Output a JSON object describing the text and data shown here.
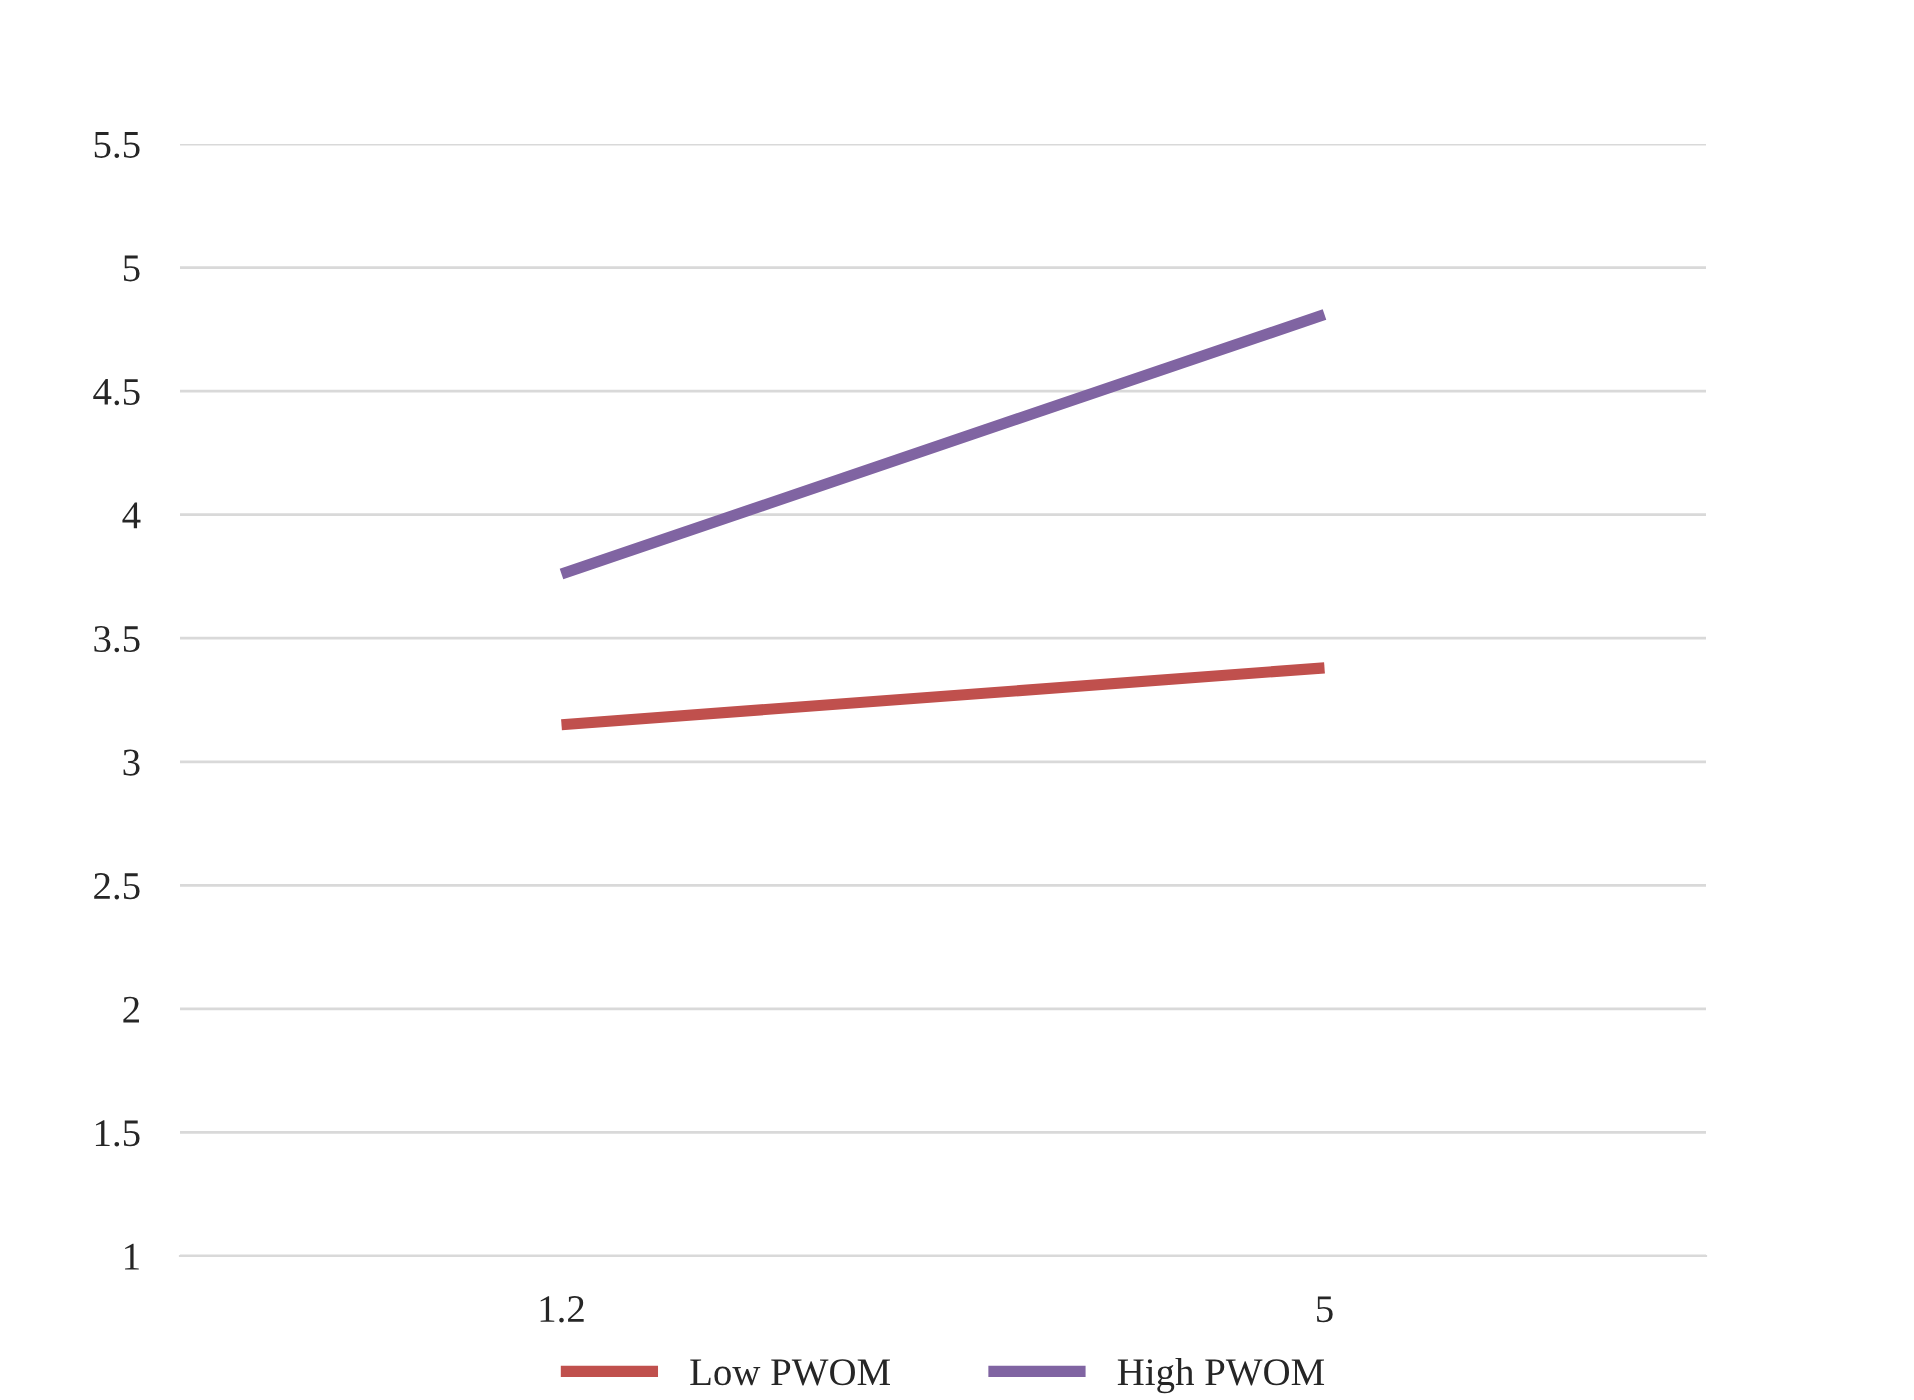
{
  "chart_data": {
    "type": "line",
    "categories": [
      "1.2",
      "5"
    ],
    "series": [
      {
        "name": "Low PWOM",
        "color": "#c0504d",
        "values": [
          3.15,
          3.38
        ]
      },
      {
        "name": "High PWOM",
        "color": "#8064a2",
        "values": [
          3.76,
          4.81
        ]
      }
    ],
    "ylim": [
      1,
      5.5
    ],
    "yticks": [
      1,
      1.5,
      2,
      2.5,
      3,
      3.5,
      4,
      4.5,
      5,
      5.5
    ],
    "grid": "y",
    "legend": "bottom",
    "marker": "none",
    "line_style": "solid"
  }
}
